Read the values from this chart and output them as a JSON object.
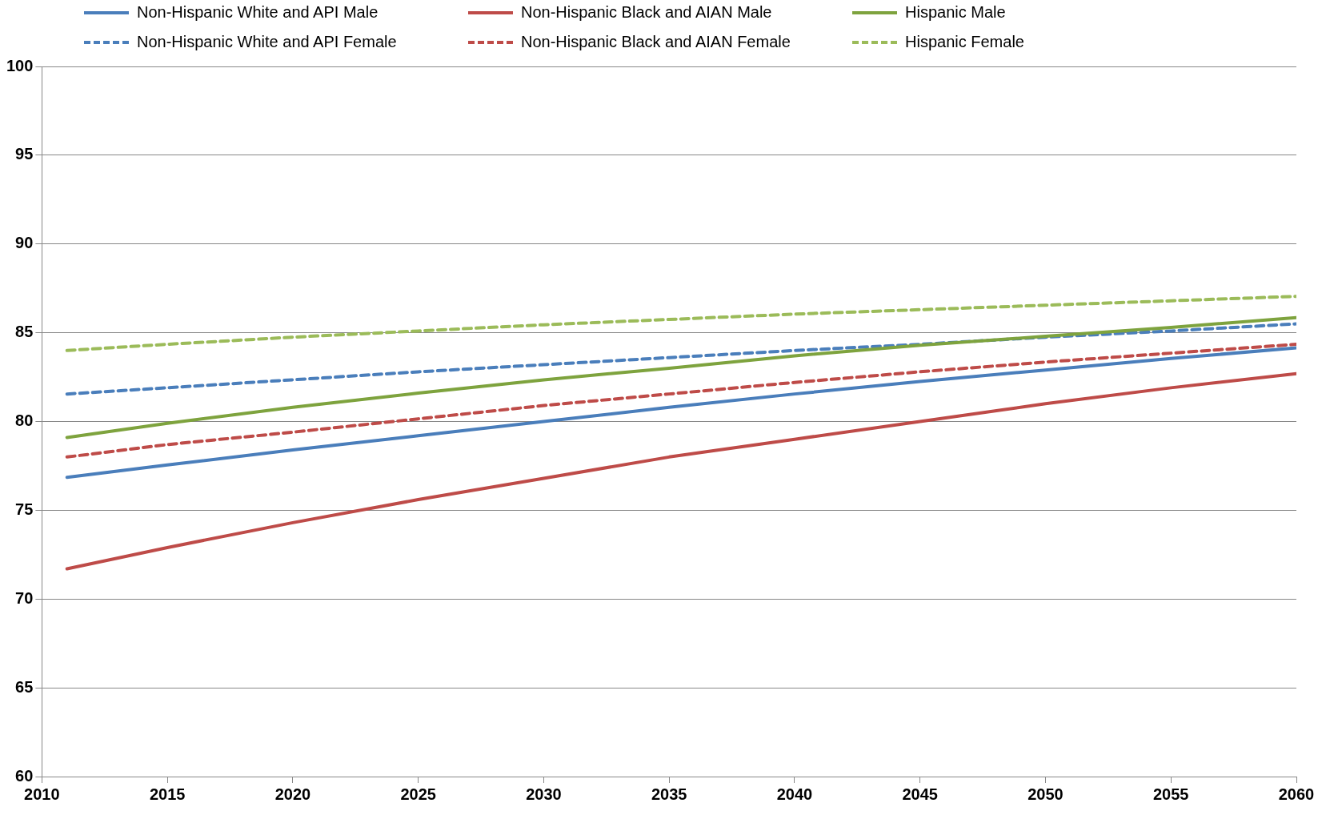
{
  "chart_data": {
    "type": "line",
    "x": [
      2011,
      2015,
      2020,
      2025,
      2030,
      2035,
      2040,
      2045,
      2050,
      2055,
      2060
    ],
    "series": [
      {
        "name": "Non-Hispanic White and API Male",
        "color": "#4a7ebb",
        "line_style": "solid",
        "values": [
          76.85,
          77.55,
          78.4,
          79.2,
          80.0,
          80.8,
          81.55,
          82.25,
          82.9,
          83.55,
          84.15
        ]
      },
      {
        "name": "Non-Hispanic Black and AIAN Male",
        "color": "#be4b48",
        "line_style": "solid",
        "values": [
          71.7,
          72.9,
          74.3,
          75.6,
          76.8,
          78.0,
          79.0,
          80.0,
          81.0,
          81.9,
          82.7
        ]
      },
      {
        "name": "Hispanic Male",
        "color": "#7ea33e",
        "line_style": "solid",
        "values": [
          79.1,
          79.9,
          80.8,
          81.6,
          82.35,
          83.0,
          83.7,
          84.3,
          84.8,
          85.3,
          85.85
        ]
      },
      {
        "name": "Non-Hispanic White and API Female",
        "color": "#4a7ebb",
        "line_style": "dashed",
        "values": [
          81.55,
          81.9,
          82.35,
          82.8,
          83.2,
          83.6,
          84.0,
          84.35,
          84.75,
          85.1,
          85.5
        ]
      },
      {
        "name": "Non-Hispanic Black and AIAN Female",
        "color": "#be4b48",
        "line_style": "dashed",
        "values": [
          78.0,
          78.7,
          79.4,
          80.15,
          80.9,
          81.55,
          82.2,
          82.8,
          83.35,
          83.85,
          84.35
        ]
      },
      {
        "name": "Hispanic Female",
        "color": "#9bbb59",
        "line_style": "dashed",
        "values": [
          84.0,
          84.35,
          84.75,
          85.1,
          85.45,
          85.75,
          86.05,
          86.3,
          86.55,
          86.8,
          87.05
        ]
      }
    ],
    "xlim": [
      2010,
      2060
    ],
    "xticks": [
      2010,
      2015,
      2020,
      2025,
      2030,
      2035,
      2040,
      2045,
      2050,
      2055,
      2060
    ],
    "ylim": [
      60,
      100
    ],
    "yticks": [
      60,
      65,
      70,
      75,
      80,
      85,
      90,
      95,
      100
    ],
    "grid": "y",
    "legend": "top",
    "marker": "none"
  }
}
